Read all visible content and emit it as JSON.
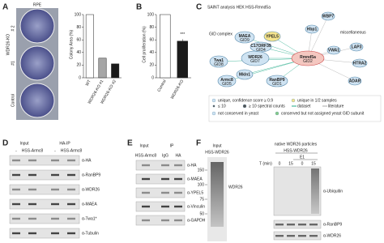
{
  "panels": {
    "a": {
      "label": "A",
      "image_title": "RPE",
      "image_labels": [
        "WDR26-KO",
        "# 2",
        "#1",
        "Control"
      ],
      "chart": {
        "type": "bar",
        "ylabel": "Colony Area (%)",
        "categories": [
          "WT",
          "WDR26-KO #1",
          "WDR26-KO #2"
        ],
        "values": [
          100,
          31,
          22
        ],
        "colors": [
          "#ffffff",
          "#a6a6a6",
          "#1a1a1a"
        ],
        "ylim": [
          0,
          100
        ],
        "yticks": [
          0,
          20,
          40,
          60,
          80,
          100
        ]
      }
    },
    "b": {
      "label": "B",
      "chart": {
        "type": "bar",
        "ylabel": "Cell proliferation (%)",
        "categories": [
          "Control",
          "WDR26-KO"
        ],
        "values": [
          100,
          58
        ],
        "errors": [
          0,
          3
        ],
        "colors": [
          "#ffffff",
          "#1a1a1a"
        ],
        "ylim": [
          0,
          100
        ],
        "yticks": [
          0,
          20,
          40,
          60,
          80,
          100
        ],
        "annotation": "***"
      }
    },
    "c": {
      "label": "C",
      "title": "SAINT analysis HEK HSS-Rmnd5a",
      "group_labels": [
        "GID complex",
        "miscellaneous"
      ],
      "nodes": [
        {
          "name": "Rmnd5a",
          "sub": "GID2"
        },
        {
          "name": "WDR26",
          "sub": "GID7"
        },
        {
          "name": "MAEA",
          "sub": "GID9"
        },
        {
          "name": "YPEL5"
        },
        {
          "name": "C17ORF39",
          "sub": "GID4"
        },
        {
          "name": "Twa1",
          "sub": "GID8"
        },
        {
          "name": "Armc8",
          "sub": "GID5"
        },
        {
          "name": "Mkln1"
        },
        {
          "name": "RanBP9",
          "sub": "GID1"
        },
        {
          "name": "WBP7"
        },
        {
          "name": "Hbp1"
        },
        {
          "name": "VWA1"
        },
        {
          "name": "LAP3"
        },
        {
          "name": "HTRA2"
        },
        {
          "name": "ADAR"
        }
      ],
      "legend": [
        "unique, confidence score ≥ 0.9",
        "unique in 1/2 samples",
        "≤ 10",
        "≥ 10 spectral counts",
        "dataset",
        "literature",
        "not conserved in yeast",
        "conserved but not assigned yeast GID subunit"
      ]
    },
    "d": {
      "label": "D",
      "headers": [
        "Input",
        "HA-IP"
      ],
      "lanes": [
        "-",
        "HSS-Armc8",
        "-",
        "HSS-Armc8"
      ],
      "antibodies": [
        "α-HA",
        "α-RanBP9",
        "α-WDR26",
        "α-MAEA",
        "α-Twa1*",
        "α-Tubulin"
      ]
    },
    "e": {
      "label": "E",
      "headers": [
        "Input",
        "IP"
      ],
      "lanes": [
        "HSS-Armc8",
        "IgG",
        "HA"
      ],
      "antibodies": [
        "α-HA",
        "α-MAEA",
        "α-YPEL5",
        "α-Vinculin",
        "α-GAPDH"
      ]
    },
    "f": {
      "label": "F",
      "input_header": "Input",
      "input_lane": "HSS-WDR26",
      "band_label": "WDR26",
      "markers": [
        150,
        100,
        75,
        50
      ],
      "title": "native WDR26 particles",
      "lane_group": "HSS-WDR26",
      "e1": "E1",
      "time_label": "T (min)",
      "times": [
        0,
        15,
        0,
        15
      ],
      "antibodies": [
        "α-Ubiquitin",
        "α-RanBP9",
        "α-WDR26"
      ]
    }
  }
}
